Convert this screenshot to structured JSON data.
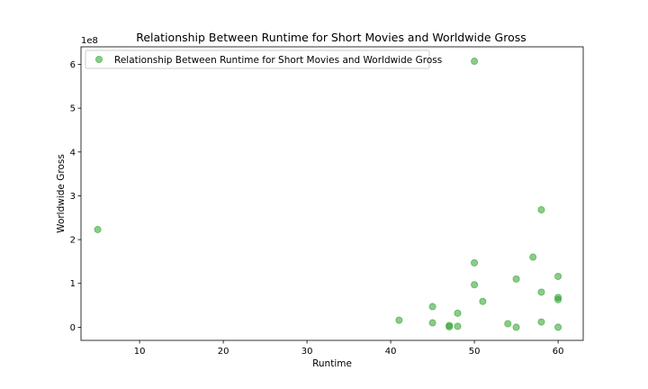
{
  "chart_data": {
    "type": "scatter",
    "title": "Relationship Between Runtime for Short Movies and Worldwide Gross",
    "xlabel": "Runtime",
    "ylabel": "Worldwide Gross",
    "y_multiplier_label": "1e8",
    "xlim": [
      3,
      63
    ],
    "ylim": [
      -30000000,
      640000000
    ],
    "x_ticks": [
      10,
      20,
      30,
      40,
      50,
      60
    ],
    "y_ticks": [
      0,
      100000000,
      200000000,
      300000000,
      400000000,
      500000000,
      600000000
    ],
    "y_tick_labels": [
      "0",
      "1",
      "2",
      "3",
      "4",
      "5",
      "6"
    ],
    "grid": false,
    "legend_position": "top-left",
    "series": [
      {
        "name": "Relationship Between Runtime for Short Movies and Worldwide Gross",
        "color": "#2ca02c",
        "alpha": 0.55,
        "points": [
          {
            "x": 5,
            "y": 223000000
          },
          {
            "x": 41,
            "y": 16000000
          },
          {
            "x": 45,
            "y": 47000000
          },
          {
            "x": 45,
            "y": 10000000
          },
          {
            "x": 47,
            "y": 4000000
          },
          {
            "x": 47,
            "y": 1000000
          },
          {
            "x": 48,
            "y": 32000000
          },
          {
            "x": 48,
            "y": 2000000
          },
          {
            "x": 50,
            "y": 607000000
          },
          {
            "x": 50,
            "y": 147000000
          },
          {
            "x": 50,
            "y": 97000000
          },
          {
            "x": 51,
            "y": 59000000
          },
          {
            "x": 54,
            "y": 8000000
          },
          {
            "x": 55,
            "y": 110000000
          },
          {
            "x": 55,
            "y": 0
          },
          {
            "x": 57,
            "y": 160000000
          },
          {
            "x": 58,
            "y": 268000000
          },
          {
            "x": 58,
            "y": 80000000
          },
          {
            "x": 58,
            "y": 12000000
          },
          {
            "x": 60,
            "y": 116000000
          },
          {
            "x": 60,
            "y": 68000000
          },
          {
            "x": 60,
            "y": 63000000
          },
          {
            "x": 60,
            "y": 0
          }
        ]
      }
    ]
  }
}
